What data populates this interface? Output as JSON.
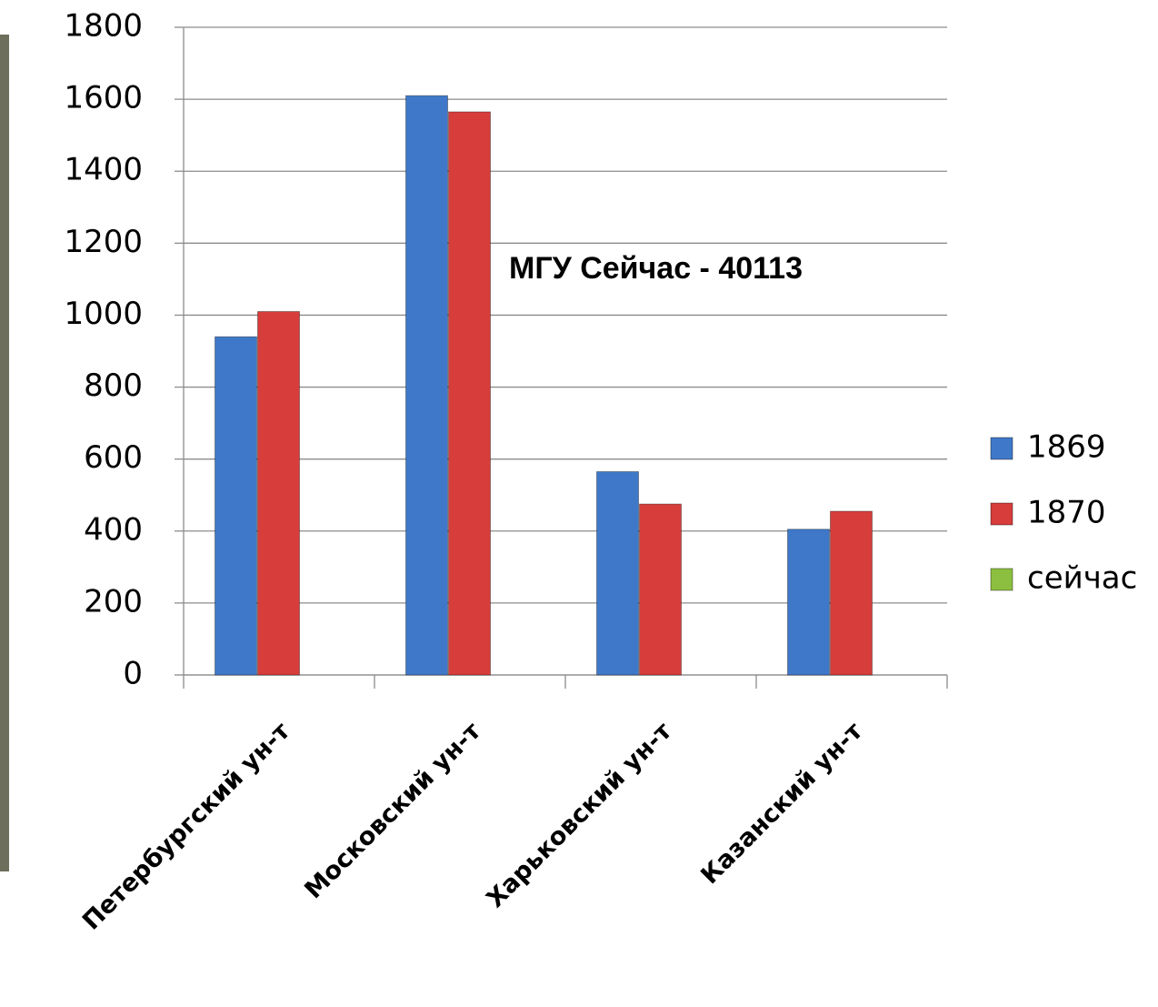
{
  "chart_data": {
    "type": "bar",
    "annotation": "МГУ Сейчас  - 40113",
    "categories": [
      "Петербургский ун-т",
      "Московский ун-т",
      "Харьковский ун-т",
      "Казанский ун-т"
    ],
    "series": [
      {
        "name": "1869",
        "color": "#3f78c8",
        "values": [
          940,
          1610,
          565,
          405
        ]
      },
      {
        "name": "1870",
        "color": "#d63d3b",
        "values": [
          1010,
          1565,
          475,
          455
        ]
      },
      {
        "name": "сейчас",
        "color": "#8cbf3f",
        "values": [
          null,
          null,
          null,
          null
        ]
      }
    ],
    "ylim": [
      0,
      1800
    ],
    "yticks": [
      0,
      200,
      400,
      600,
      800,
      1000,
      1200,
      1400,
      1600,
      1800
    ],
    "grid": true,
    "legend": "right"
  }
}
